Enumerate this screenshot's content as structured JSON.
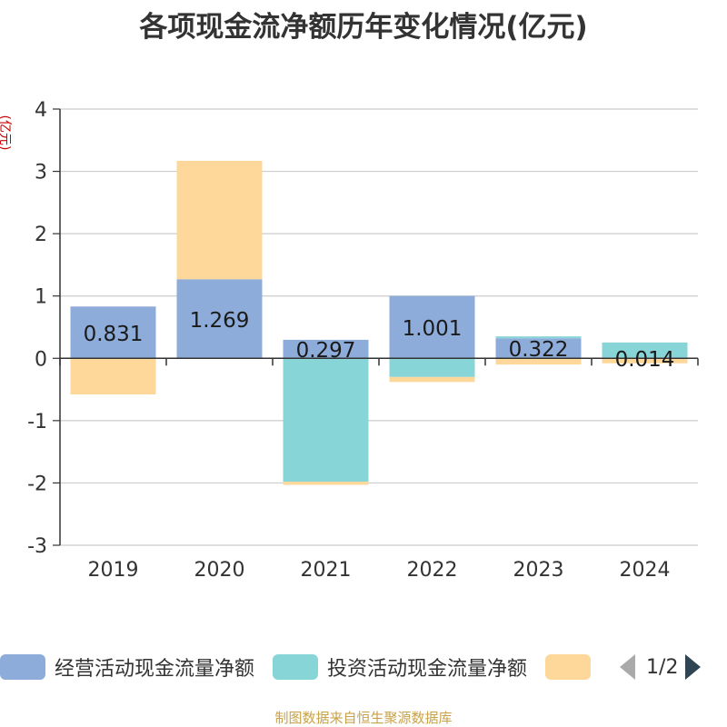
{
  "chart_data": {
    "type": "bar",
    "stacked": true,
    "title": "各项现金流净额历年变化情况(亿元)",
    "ylabel": "(亿元)",
    "categories": [
      "2019",
      "2020",
      "2021",
      "2022",
      "2023",
      "2024"
    ],
    "ylim": [
      -3,
      4
    ],
    "yticks": [
      "4",
      "3",
      "2",
      "1",
      "0",
      "-1",
      "-2",
      "-3"
    ],
    "grid": true,
    "legend_position": "bottom",
    "series": [
      {
        "name": "经营活动现金流量净额",
        "color": "#8eacda",
        "values": [
          0.831,
          1.269,
          0.297,
          1.001,
          0.322,
          0.014
        ],
        "labels": [
          "0.831",
          "1.269",
          "0.297",
          "1.001",
          "0.322",
          "0.014"
        ]
      },
      {
        "name": "投资活动现金流量净额",
        "color": "#88d5d8",
        "values": [
          0.0,
          0.0,
          -1.98,
          -0.3,
          0.03,
          0.24
        ]
      },
      {
        "name": "",
        "color": "#fdd89a",
        "values": [
          -0.58,
          1.9,
          -0.05,
          -0.08,
          -0.1,
          -0.08
        ]
      }
    ]
  },
  "legend": {
    "items": [
      {
        "label": "经营活动现金流量净额",
        "color": "#8eacda"
      },
      {
        "label": "投资活动现金流量净额",
        "color": "#88d5d8"
      },
      {
        "label": "",
        "color": "#fdd89a"
      }
    ],
    "page": "1/2"
  },
  "source_note": "制图数据来自恒生聚源数据库"
}
